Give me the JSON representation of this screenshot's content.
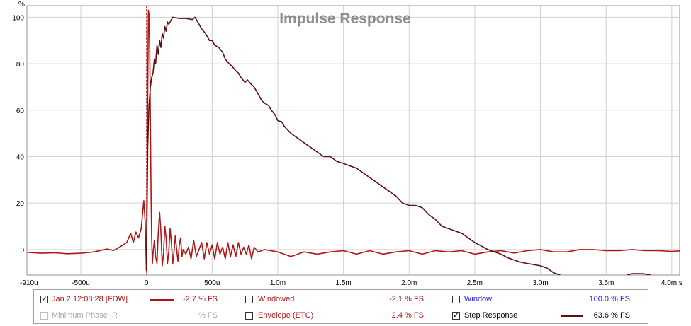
{
  "chart_data": {
    "type": "line",
    "title": "Impulse Response",
    "ylabel": "%",
    "xunit": "s",
    "xlim": [
      -0.00091,
      0.00406
    ],
    "ylim": [
      -11,
      105
    ],
    "grid": true,
    "y_ticks": [
      0,
      20,
      40,
      60,
      80,
      100
    ],
    "x_ticks": [
      {
        "value": -0.00091,
        "label": "-910u"
      },
      {
        "value": -0.0005,
        "label": "-500u"
      },
      {
        "value": 0,
        "label": "0"
      },
      {
        "value": 0.0005,
        "label": "500u"
      },
      {
        "value": 0.001,
        "label": "1.0m"
      },
      {
        "value": 0.0015,
        "label": "1.5m"
      },
      {
        "value": 0.002,
        "label": "2.0m"
      },
      {
        "value": 0.0025,
        "label": "2.5m"
      },
      {
        "value": 0.003,
        "label": "3.0m"
      },
      {
        "value": 0.0035,
        "label": "3.5m"
      },
      {
        "value": 0.004,
        "label": "4.0m s"
      }
    ],
    "series": [
      {
        "name": "Jan 2 12:08:28 [FDW]",
        "color": "#b01515",
        "points": [
          [
            -0.00091,
            -1.2
          ],
          [
            -0.0008,
            -1.6
          ],
          [
            -0.0007,
            -1.4
          ],
          [
            -0.0006,
            -1.8
          ],
          [
            -0.0005,
            -1.6
          ],
          [
            -0.0004,
            -1.0
          ],
          [
            -0.0003,
            0.2
          ],
          [
            -0.00025,
            -0.4
          ],
          [
            -0.0002,
            1.2
          ],
          [
            -0.00015,
            3.0
          ],
          [
            -0.00012,
            7.0
          ],
          [
            -0.0001,
            3.0
          ],
          [
            -8e-05,
            7.5
          ],
          [
            -6e-05,
            5.0
          ],
          [
            -4e-05,
            9.0
          ],
          [
            -2e-05,
            21.0
          ],
          [
            -1e-05,
            12.0
          ],
          [
            0.0,
            -9.0
          ],
          [
            5e-06,
            30
          ],
          [
            1e-05,
            70
          ],
          [
            1.5e-05,
            103
          ],
          [
            2e-05,
            101
          ],
          [
            2.5e-05,
            85
          ],
          [
            3e-05,
            55
          ],
          [
            3.5e-05,
            25
          ],
          [
            4e-05,
            5
          ],
          [
            4.5e-05,
            -6
          ],
          [
            5e-05,
            -2
          ],
          [
            6e-05,
            4
          ],
          [
            7e-05,
            -3
          ],
          [
            8e-05,
            -6
          ],
          [
            9e-05,
            7
          ],
          [
            0.0001,
            16
          ],
          [
            0.00011,
            8
          ],
          [
            0.00012,
            -7
          ],
          [
            0.00013,
            -2
          ],
          [
            0.00014,
            10
          ],
          [
            0.00015,
            5
          ],
          [
            0.00016,
            -6
          ],
          [
            0.00017,
            -1
          ],
          [
            0.00018,
            9
          ],
          [
            0.00019,
            3
          ],
          [
            0.0002,
            -6
          ],
          [
            0.00021,
            -1
          ],
          [
            0.00022,
            6
          ],
          [
            0.00023,
            0
          ],
          [
            0.00024,
            -5
          ],
          [
            0.00025,
            2
          ],
          [
            0.00026,
            5
          ],
          [
            0.00027,
            -3
          ],
          [
            0.00028,
            0
          ],
          [
            0.0003,
            -2
          ],
          [
            0.00032,
            1
          ],
          [
            0.00034,
            -4
          ],
          [
            0.00036,
            4
          ],
          [
            0.00038,
            -3
          ],
          [
            0.0004,
            0
          ],
          [
            0.00042,
            3
          ],
          [
            0.00044,
            -4
          ],
          [
            0.00046,
            3
          ],
          [
            0.00048,
            -2
          ],
          [
            0.0005,
            2
          ],
          [
            0.00052,
            -4
          ],
          [
            0.00054,
            3
          ],
          [
            0.00056,
            -2
          ],
          [
            0.00058,
            1
          ],
          [
            0.0006,
            -4
          ],
          [
            0.00062,
            3
          ],
          [
            0.00064,
            -3
          ],
          [
            0.00066,
            2
          ],
          [
            0.00068,
            -3
          ],
          [
            0.0007,
            3
          ],
          [
            0.00072,
            -2
          ],
          [
            0.00074,
            1
          ],
          [
            0.00076,
            -2
          ],
          [
            0.00078,
            2
          ],
          [
            0.0008,
            -4
          ],
          [
            0.00082,
            1
          ],
          [
            0.00085,
            -1
          ],
          [
            0.0009,
            0
          ],
          [
            0.001,
            -1
          ],
          [
            0.0011,
            -3
          ],
          [
            0.0012,
            -1
          ],
          [
            0.0013,
            -2
          ],
          [
            0.0014,
            -1
          ],
          [
            0.0015,
            -0.5
          ],
          [
            0.0016,
            -2
          ],
          [
            0.0017,
            -0.5
          ],
          [
            0.0018,
            -2
          ],
          [
            0.0019,
            -1
          ],
          [
            0.002,
            -0.5
          ],
          [
            0.0021,
            -2
          ],
          [
            0.0022,
            -0.5
          ],
          [
            0.0023,
            -1
          ],
          [
            0.0024,
            -0.5
          ],
          [
            0.0025,
            -2
          ],
          [
            0.0026,
            -1
          ],
          [
            0.0027,
            -0.5
          ],
          [
            0.0028,
            -1.5
          ],
          [
            0.0029,
            -0.5
          ],
          [
            0.003,
            0
          ],
          [
            0.0031,
            -1
          ],
          [
            0.0032,
            -1
          ],
          [
            0.0033,
            0
          ],
          [
            0.0034,
            0
          ],
          [
            0.0035,
            -0.5
          ],
          [
            0.0036,
            -0.5
          ],
          [
            0.0037,
            0
          ],
          [
            0.0038,
            -0.5
          ],
          [
            0.0039,
            -0.5
          ],
          [
            0.004,
            -0.8
          ],
          [
            0.00406,
            -0.6
          ]
        ]
      },
      {
        "name": "Step Response",
        "color": "#5c1010",
        "points": [
          [
            0.0,
            -9
          ],
          [
            5e-06,
            20
          ],
          [
            1e-05,
            45
          ],
          [
            2e-05,
            62
          ],
          [
            3e-05,
            70
          ],
          [
            4e-05,
            74
          ],
          [
            5e-05,
            76
          ],
          [
            6e-05,
            82
          ],
          [
            7e-05,
            80
          ],
          [
            8e-05,
            88
          ],
          [
            9e-05,
            84
          ],
          [
            0.0001,
            90
          ],
          [
            0.00011,
            87
          ],
          [
            0.00012,
            93
          ],
          [
            0.00013,
            91
          ],
          [
            0.00014,
            96
          ],
          [
            0.00015,
            94
          ],
          [
            0.00016,
            98
          ],
          [
            0.00017,
            97
          ],
          [
            0.0002,
            100
          ],
          [
            0.00025,
            99.5
          ],
          [
            0.0003,
            99.5
          ],
          [
            0.00035,
            99
          ],
          [
            0.00037,
            100
          ],
          [
            0.0004,
            97
          ],
          [
            0.00042,
            95
          ],
          [
            0.00045,
            93
          ],
          [
            0.00048,
            90
          ],
          [
            0.0005,
            90
          ],
          [
            0.00052,
            88
          ],
          [
            0.00055,
            87
          ],
          [
            0.00058,
            85
          ],
          [
            0.0006,
            82
          ],
          [
            0.00063,
            80
          ],
          [
            0.00065,
            79
          ],
          [
            0.00068,
            77
          ],
          [
            0.0007,
            76
          ],
          [
            0.00072,
            74
          ],
          [
            0.00075,
            72
          ],
          [
            0.00077,
            73
          ],
          [
            0.0008,
            71
          ],
          [
            0.00082,
            70
          ],
          [
            0.00085,
            67
          ],
          [
            0.00088,
            64
          ],
          [
            0.0009,
            63
          ],
          [
            0.00093,
            62
          ],
          [
            0.00095,
            60
          ],
          [
            0.00098,
            58
          ],
          [
            0.001,
            55.5
          ],
          [
            0.00103,
            55
          ],
          [
            0.00105,
            53
          ],
          [
            0.0011,
            50
          ],
          [
            0.00115,
            48
          ],
          [
            0.0012,
            46
          ],
          [
            0.00125,
            44
          ],
          [
            0.0013,
            42
          ],
          [
            0.00135,
            40
          ],
          [
            0.0014,
            40
          ],
          [
            0.00145,
            38
          ],
          [
            0.0015,
            37
          ],
          [
            0.00155,
            36
          ],
          [
            0.0016,
            35
          ],
          [
            0.00165,
            33
          ],
          [
            0.0017,
            31
          ],
          [
            0.00175,
            29
          ],
          [
            0.0018,
            27
          ],
          [
            0.00185,
            25
          ],
          [
            0.0019,
            23
          ],
          [
            0.00195,
            20
          ],
          [
            0.002,
            19
          ],
          [
            0.00205,
            19
          ],
          [
            0.0021,
            18
          ],
          [
            0.00215,
            15
          ],
          [
            0.0022,
            13
          ],
          [
            0.00225,
            10
          ],
          [
            0.0023,
            9
          ],
          [
            0.00235,
            8
          ],
          [
            0.0024,
            7
          ],
          [
            0.00245,
            5
          ],
          [
            0.0025,
            3
          ],
          [
            0.00255,
            1.5
          ],
          [
            0.0026,
            0
          ],
          [
            0.00265,
            -1
          ],
          [
            0.0027,
            -2
          ],
          [
            0.00275,
            -3.5
          ],
          [
            0.0028,
            -4.5
          ],
          [
            0.00285,
            -5.5
          ],
          [
            0.0029,
            -6
          ],
          [
            0.00295,
            -6.5
          ],
          [
            0.003,
            -7
          ],
          [
            0.00305,
            -8
          ],
          [
            0.0031,
            -10
          ],
          [
            0.00315,
            -11
          ]
        ]
      },
      {
        "name": "Step Response (tail)",
        "color": "#5c1010",
        "points": [
          [
            0.00366,
            -11
          ],
          [
            0.0037,
            -10.4
          ],
          [
            0.00378,
            -10.4
          ],
          [
            0.00384,
            -11
          ]
        ]
      }
    ],
    "marker": {
      "x": 0,
      "color": "#d83030",
      "style": "dashed"
    }
  },
  "legend": {
    "row1": {
      "col1": {
        "checked": true,
        "label": "Jan 2 12:08:28 [FDW]",
        "value": "-2.7 % FS",
        "color": "#b01515",
        "text_color": "#b01515"
      },
      "col2": {
        "checked": false,
        "label": "Windowed",
        "value": "-2.1 % FS",
        "text_color": "#b01515"
      },
      "col3": {
        "checked": false,
        "label": "Window",
        "value": "100.0 % FS",
        "text_color": "#1a1aff"
      }
    },
    "row2": {
      "col1": {
        "checked": false,
        "disabled": true,
        "label": "Minimum Phase IR",
        "value": "% FS",
        "text_color": "#a8a8a8"
      },
      "col2": {
        "checked": false,
        "label": "Envelope (ETC)",
        "value": "2.4 % FS",
        "text_color": "#b01515"
      },
      "col3": {
        "checked": true,
        "label": "Step Response",
        "value": "63.6 % FS",
        "color": "#5c1010",
        "text_color": "#000000"
      }
    }
  }
}
